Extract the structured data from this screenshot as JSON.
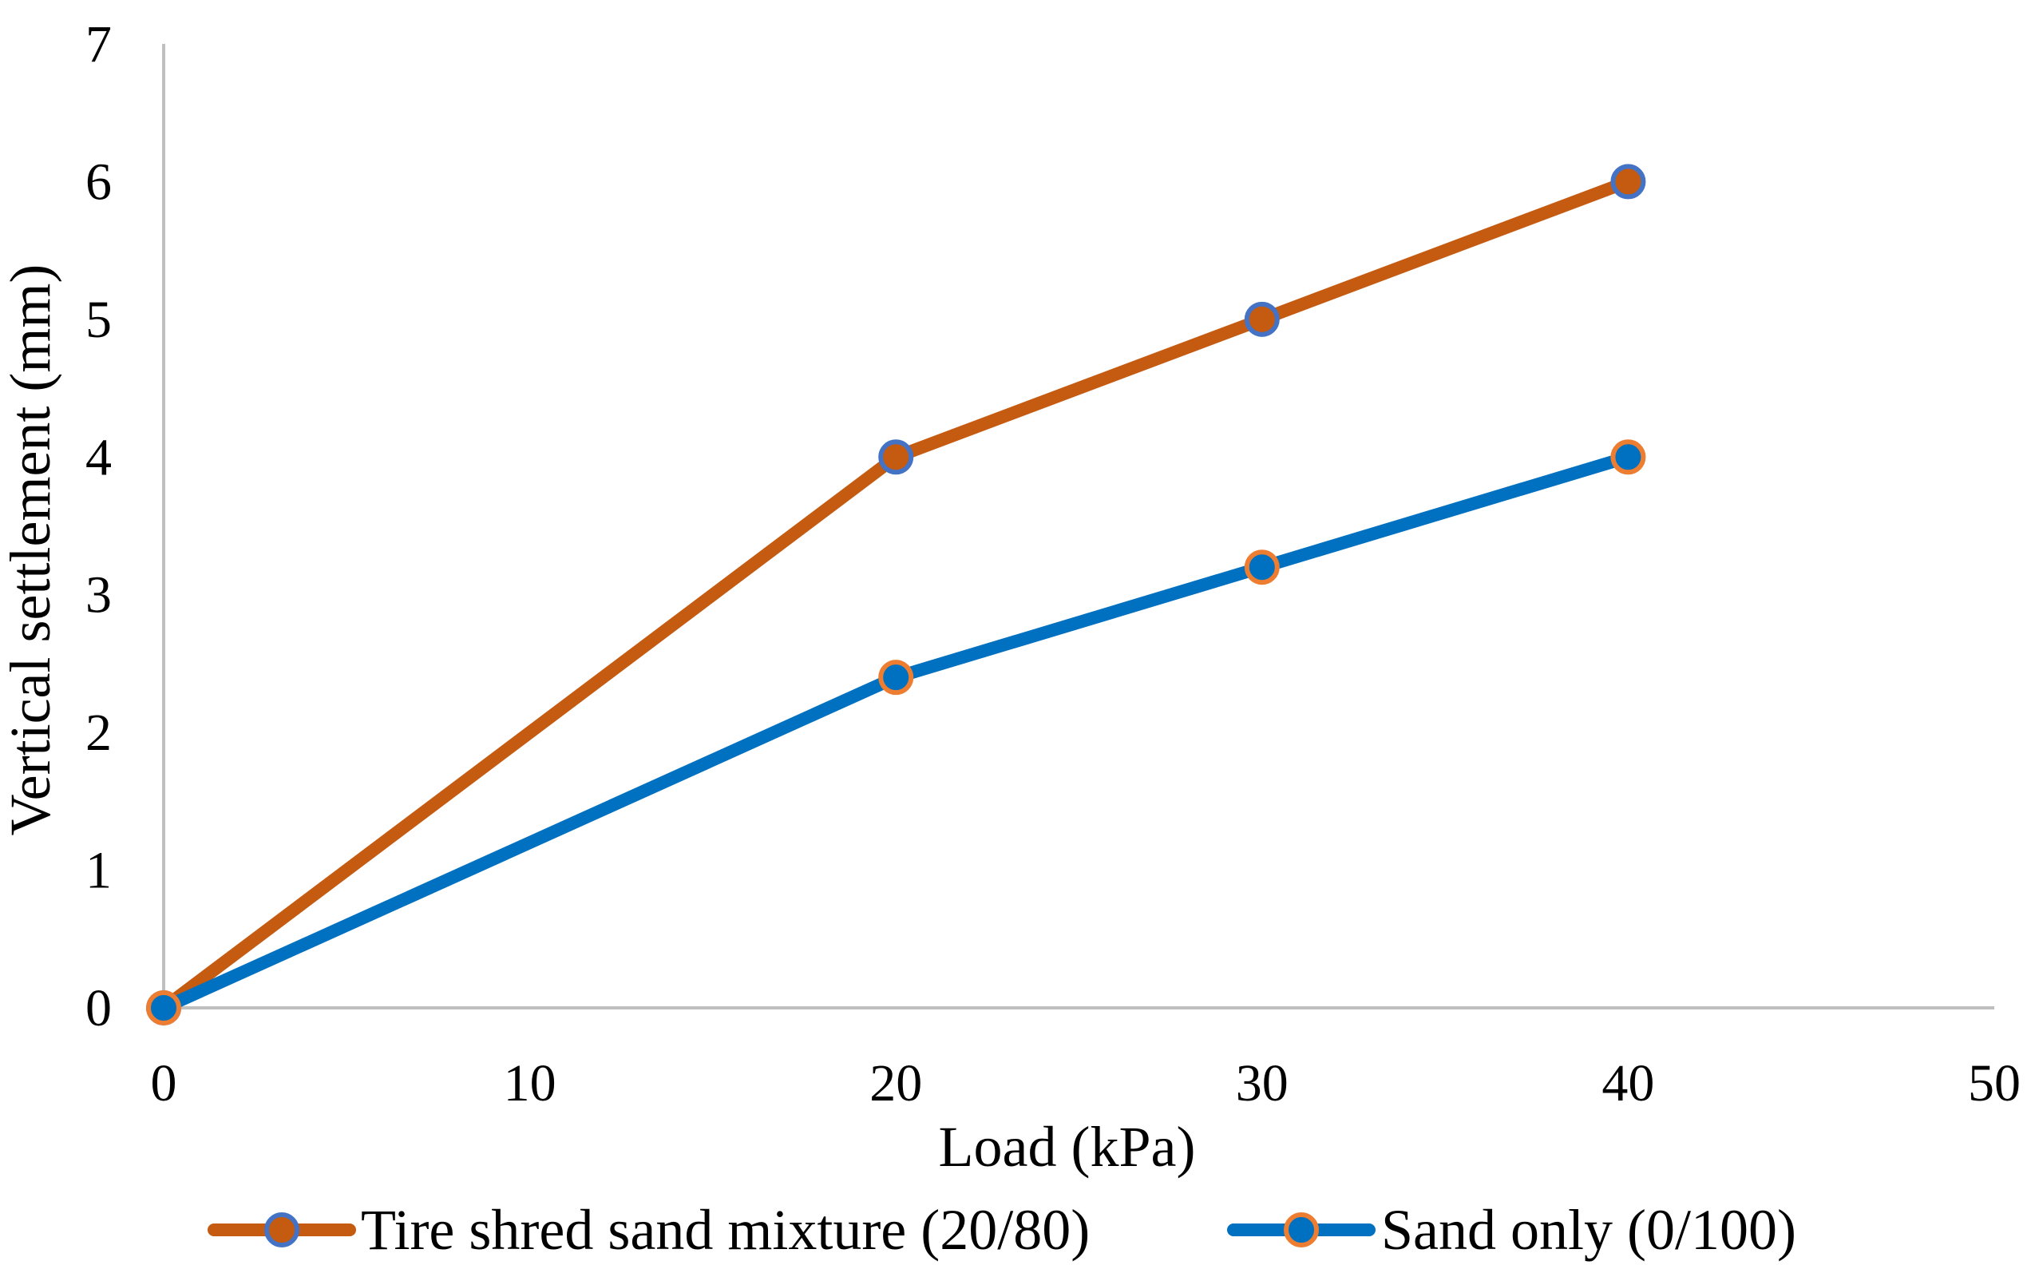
{
  "chart_data": {
    "type": "line",
    "title": "",
    "xlabel": "Load (kPa)",
    "ylabel": "Vertical settlement (mm)",
    "xlim": [
      0,
      50
    ],
    "ylim": [
      0,
      7
    ],
    "xticks": [
      0,
      10,
      20,
      30,
      40,
      50
    ],
    "yticks": [
      0,
      1,
      2,
      3,
      4,
      5,
      6,
      7
    ],
    "xtick_labels": [
      "0",
      "10",
      "20",
      "30",
      "40",
      "50"
    ],
    "ytick_labels": [
      "0",
      "1",
      "2",
      "3",
      "4",
      "5",
      "6",
      "7"
    ],
    "grid": false,
    "legend_position": "bottom",
    "series": [
      {
        "name": "Tire shred sand mixture (20/80)",
        "x": [
          0,
          20,
          30,
          40
        ],
        "values": [
          0,
          4,
          5,
          6
        ],
        "line_color": "#C55A11",
        "marker_fill": "#C55A11",
        "marker_edge": "#4472C4"
      },
      {
        "name": "Sand only (0/100)",
        "x": [
          0,
          20,
          30,
          40
        ],
        "values": [
          0,
          2.4,
          3.2,
          4
        ],
        "line_color": "#0070C0",
        "marker_fill": "#0070C0",
        "marker_edge": "#ED7D31"
      }
    ],
    "axis_color": "#BFBFBF"
  }
}
